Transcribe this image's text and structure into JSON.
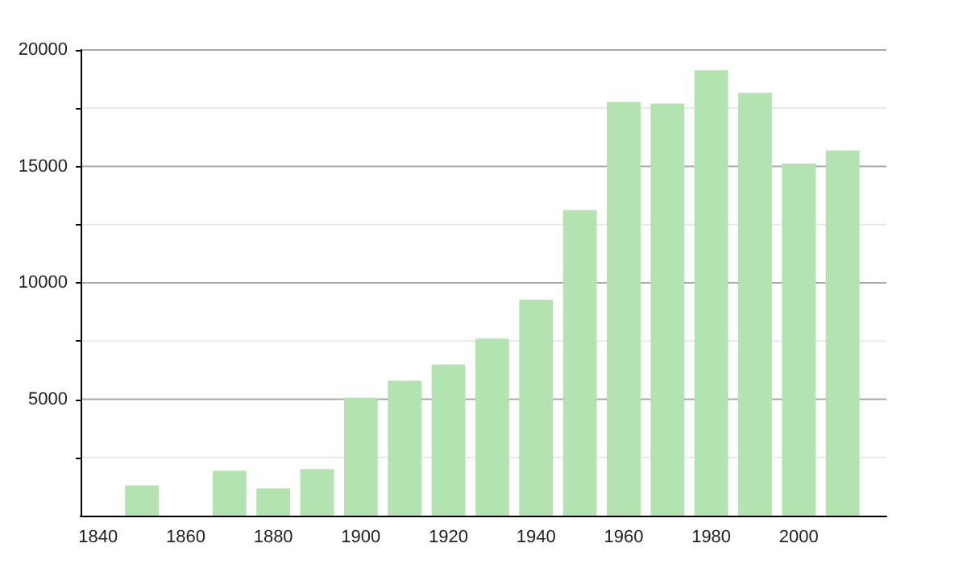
{
  "chart_data": {
    "type": "bar",
    "x": [
      1850,
      1870,
      1880,
      1890,
      1900,
      1910,
      1920,
      1930,
      1940,
      1950,
      1960,
      1970,
      1980,
      1990,
      2000,
      2010
    ],
    "values": [
      1300,
      1930,
      1170,
      2000,
      5060,
      5800,
      6490,
      7600,
      9270,
      13120,
      17770,
      17700,
      19130,
      18160,
      15120,
      15680
    ],
    "color": "#b3e3b0",
    "xlim": [
      1836,
      2020
    ],
    "xticks": [
      1840,
      1860,
      1880,
      1900,
      1920,
      1940,
      1960,
      1980,
      2000
    ],
    "ylim": [
      0,
      20000
    ],
    "yticks": [
      {
        "value": 2500,
        "label": null
      },
      5000,
      {
        "value": 7500,
        "label": null
      },
      10000,
      {
        "value": 12500,
        "label": null
      },
      15000,
      {
        "value": 17500,
        "label": null
      },
      20000
    ],
    "grid": "y"
  }
}
